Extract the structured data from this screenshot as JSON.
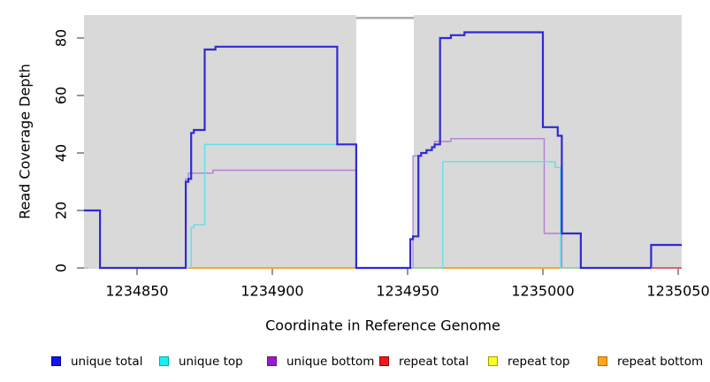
{
  "chart_data": {
    "type": "line",
    "subtype": "step-coverage",
    "title": "",
    "xlabel": "Coordinate in Reference Genome",
    "ylabel": "Read Coverage Depth",
    "xlim": [
      1234830,
      1235051
    ],
    "ylim": [
      0,
      88
    ],
    "grid": false,
    "panel_bg": "#D9D9D9",
    "x_ticks": [
      1234850,
      1234900,
      1234950,
      1235000,
      1235050
    ],
    "x_tick_labels": [
      "1234850",
      "1234900",
      "1234950",
      "1235000",
      "1235050"
    ],
    "y_ticks": [
      0,
      20,
      40,
      60,
      80
    ],
    "y_tick_labels": [
      "0",
      "20",
      "40",
      "60",
      "80"
    ],
    "masked_region": {
      "from": 1234931,
      "to": 1234952.3,
      "fill": "#FFFFFF",
      "top_line_depth": 87,
      "top_line_color": "#ACACAC"
    },
    "series": [
      {
        "name": "repeat total",
        "color": "#DE2333",
        "width": 1.4,
        "points": [
          [
            1234869,
            0
          ],
          [
            1235051.3,
            0
          ]
        ]
      },
      {
        "name": "repeat top",
        "color": "#F5F02A",
        "width": 1.4,
        "points": [
          [
            1234869,
            0
          ],
          [
            1235013.5,
            0
          ]
        ]
      },
      {
        "name": "repeat bottom",
        "color": "#FFA11E",
        "width": 1.4,
        "points": [
          [
            1234869,
            0
          ],
          [
            1235007,
            0
          ]
        ]
      },
      {
        "name": "unique bottom",
        "color": "#B27FD9",
        "width": 1.4,
        "points": [
          [
            1234868,
            0
          ],
          [
            1234868,
            31
          ],
          [
            1234869,
            31
          ],
          [
            1234869,
            33
          ],
          [
            1234878,
            33
          ],
          [
            1234878,
            34
          ],
          [
            1234931,
            34
          ],
          [
            1234931,
            0
          ],
          [
            1234952,
            0
          ],
          [
            1234952,
            39
          ],
          [
            1234955,
            39
          ],
          [
            1234955,
            40
          ],
          [
            1234957,
            40
          ],
          [
            1234957,
            41
          ],
          [
            1234959,
            41
          ],
          [
            1234959,
            42
          ],
          [
            1234960,
            42
          ],
          [
            1234960,
            44
          ],
          [
            1234966,
            44
          ],
          [
            1234966,
            45
          ],
          [
            1235000.5,
            45
          ],
          [
            1235000.5,
            12
          ],
          [
            1235007,
            12
          ],
          [
            1235007,
            0
          ]
        ]
      },
      {
        "name": "unique top",
        "color": "#5CE2EA",
        "width": 1.4,
        "points": [
          [
            1234870,
            0
          ],
          [
            1234870,
            14
          ],
          [
            1234871,
            14
          ],
          [
            1234871,
            15
          ],
          [
            1234875,
            15
          ],
          [
            1234875,
            43
          ],
          [
            1234931,
            43
          ],
          [
            1234931,
            0
          ],
          [
            1234963,
            0
          ],
          [
            1234963,
            37
          ],
          [
            1235004.5,
            37
          ],
          [
            1235004.5,
            35
          ],
          [
            1235006.5,
            35
          ],
          [
            1235006.5,
            0
          ],
          [
            1235040,
            0
          ],
          [
            1235040,
            8
          ],
          [
            1235051.3,
            8
          ]
        ]
      },
      {
        "name": "unique total",
        "color": "#2F2AD4",
        "width": 2.2,
        "points": [
          [
            1234830.4,
            20
          ],
          [
            1234836.3,
            20
          ],
          [
            1234836.3,
            0
          ],
          [
            1234868,
            0
          ],
          [
            1234868,
            30
          ],
          [
            1234869,
            30
          ],
          [
            1234869,
            31
          ],
          [
            1234870,
            31
          ],
          [
            1234870,
            47
          ],
          [
            1234871,
            47
          ],
          [
            1234871,
            48
          ],
          [
            1234875,
            48
          ],
          [
            1234875,
            76
          ],
          [
            1234879,
            76
          ],
          [
            1234879,
            77
          ],
          [
            1234924,
            77
          ],
          [
            1234924,
            43
          ],
          [
            1234931,
            43
          ],
          [
            1234931,
            0
          ],
          [
            1234951,
            0
          ],
          [
            1234951,
            10
          ],
          [
            1234952,
            10
          ],
          [
            1234952,
            11
          ],
          [
            1234954,
            11
          ],
          [
            1234954,
            39
          ],
          [
            1234955,
            39
          ],
          [
            1234955,
            40
          ],
          [
            1234957,
            40
          ],
          [
            1234957,
            41
          ],
          [
            1234959,
            41
          ],
          [
            1234959,
            42
          ],
          [
            1234960,
            42
          ],
          [
            1234960,
            43
          ],
          [
            1234962,
            43
          ],
          [
            1234962,
            80
          ],
          [
            1234966,
            80
          ],
          [
            1234966,
            81
          ],
          [
            1234971,
            81
          ],
          [
            1234971,
            82
          ],
          [
            1235000,
            82
          ],
          [
            1235000,
            49
          ],
          [
            1235005.5,
            49
          ],
          [
            1235005.5,
            46
          ],
          [
            1235007,
            46
          ],
          [
            1235007,
            12
          ],
          [
            1235014,
            12
          ],
          [
            1235014,
            0
          ],
          [
            1235040,
            0
          ],
          [
            1235040,
            8
          ],
          [
            1235051.3,
            8
          ]
        ]
      }
    ],
    "baseline_overlays": [
      {
        "from": 1234830.4,
        "to": 1234832,
        "color": "#93D897"
      },
      {
        "from": 1234952.3,
        "to": 1234962.5,
        "color": "#93D897"
      },
      {
        "from": 1235007,
        "to": 1235013.5,
        "color": "#93D897"
      },
      {
        "from": 1235040,
        "to": 1235051.3,
        "color": "#E05A64"
      }
    ],
    "legend": {
      "position": "bottom",
      "items": [
        {
          "label": "unique total",
          "fill": "#1414F0",
          "border": "#0000A0"
        },
        {
          "label": "unique top",
          "fill": "#18F0F0",
          "border": "#00A8B0"
        },
        {
          "label": "unique bottom",
          "fill": "#9919D1",
          "border": "#66128C"
        },
        {
          "label": "repeat total",
          "fill": "#F01818",
          "border": "#990000"
        },
        {
          "label": "repeat top",
          "fill": "#FCFC20",
          "border": "#A0A000"
        },
        {
          "label": "repeat bottom",
          "fill": "#FFA51E",
          "border": "#B36B00"
        }
      ]
    }
  }
}
